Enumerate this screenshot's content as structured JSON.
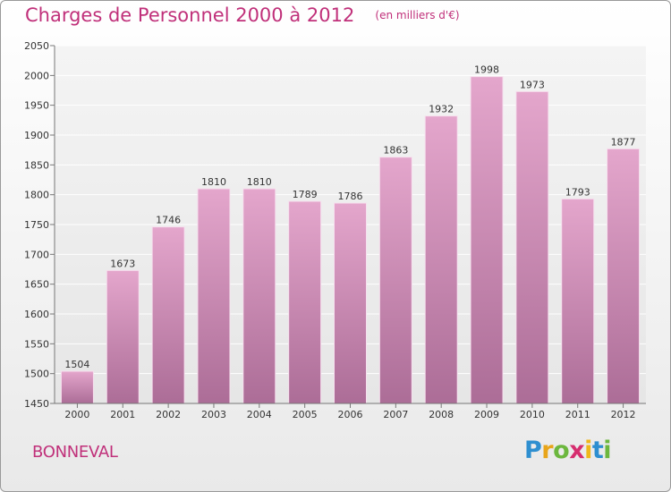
{
  "title": "Charges de Personnel 2000 à 2012",
  "subtitle": "(en milliers d'€)",
  "place": "BONNEVAL",
  "logo": {
    "text": "Proxiti",
    "letters": [
      "P",
      "r",
      "o",
      "x",
      "i",
      "t",
      "i"
    ],
    "colors": [
      "#2e8fd0",
      "#e8a51a",
      "#6cb73e",
      "#d62e6f",
      "#f0b71a",
      "#2e8fd0",
      "#6cb73e"
    ]
  },
  "colors": {
    "accent": "#c0307a",
    "bar_top": "#e4a6cc",
    "bar_bottom": "#ac6d97"
  },
  "chart_data": {
    "type": "bar",
    "categories": [
      "2000",
      "2001",
      "2002",
      "2003",
      "2004",
      "2005",
      "2006",
      "2007",
      "2008",
      "2009",
      "2010",
      "2011",
      "2012"
    ],
    "values": [
      1504,
      1673,
      1746,
      1810,
      1810,
      1789,
      1786,
      1863,
      1932,
      1998,
      1973,
      1793,
      1877
    ],
    "ylim": [
      1450,
      2050
    ],
    "yticks": [
      1450,
      1500,
      1550,
      1600,
      1650,
      1700,
      1750,
      1800,
      1850,
      1900,
      1950,
      2000,
      2050
    ],
    "grid": true,
    "data_labels": true
  }
}
